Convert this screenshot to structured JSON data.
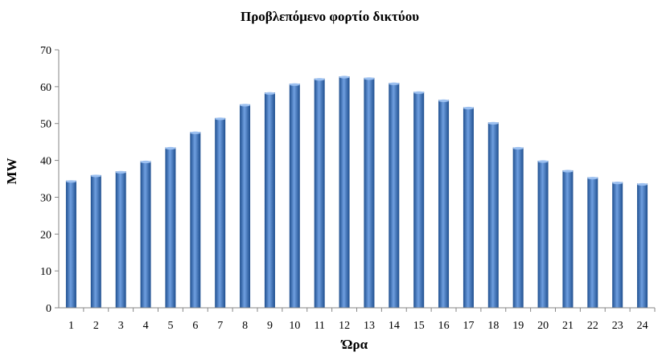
{
  "chart_data": {
    "type": "bar",
    "title": "Προβλεπόμενο φορτίο δικτύου",
    "xlabel": "Ώρα",
    "ylabel": "MW",
    "ylim": [
      0,
      70
    ],
    "yticks": [
      0,
      10,
      20,
      30,
      40,
      50,
      60,
      70
    ],
    "categories": [
      "1",
      "2",
      "3",
      "4",
      "5",
      "6",
      "7",
      "8",
      "9",
      "10",
      "11",
      "12",
      "13",
      "14",
      "15",
      "16",
      "17",
      "18",
      "19",
      "20",
      "21",
      "22",
      "23",
      "24"
    ],
    "values": [
      34.5,
      36.0,
      37.0,
      39.8,
      43.5,
      47.7,
      51.5,
      55.2,
      58.4,
      60.8,
      62.2,
      62.8,
      62.4,
      61.0,
      58.6,
      56.4,
      54.4,
      50.3,
      43.5,
      39.9,
      37.3,
      35.4,
      34.1,
      33.7
    ],
    "grid": false,
    "legend": "none",
    "bar_color": "#3a6fb8"
  }
}
